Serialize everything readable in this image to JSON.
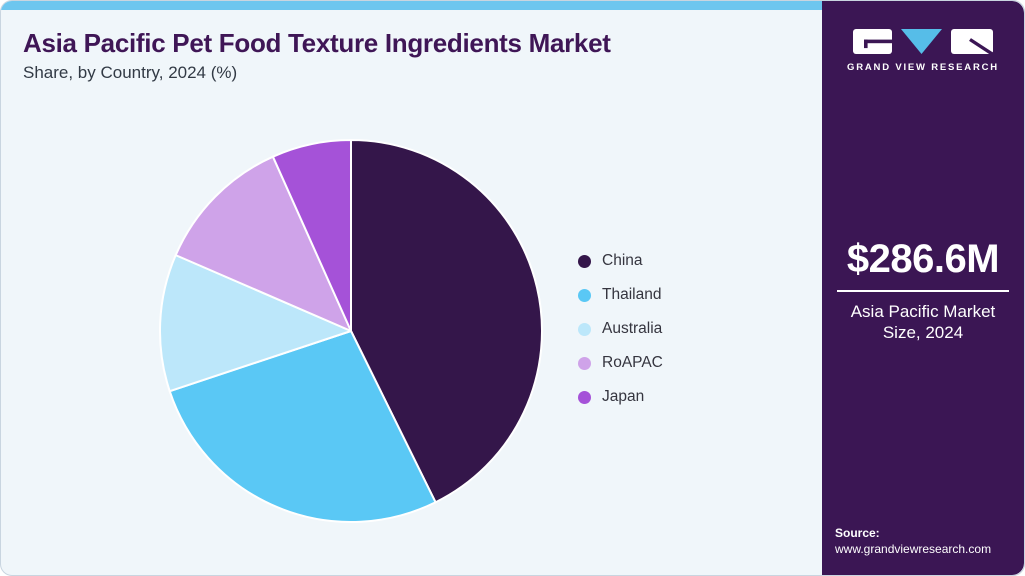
{
  "header": {
    "title": "Asia Pacific Pet Food Texture Ingredients Market",
    "subtitle": "Share, by Country, 2024 (%)"
  },
  "chart_data": {
    "type": "pie",
    "title": "Asia Pacific Pet Food Texture Ingredients Market",
    "subtitle": "Share, by Country, 2024 (%)",
    "unit": "%",
    "categories": [
      "China",
      "Thailand",
      "Australia",
      "RoAPAC",
      "Japan"
    ],
    "values": [
      42.7,
      27.2,
      11.6,
      11.8,
      6.7
    ],
    "colors": [
      "#34164A",
      "#5AC8F5",
      "#BCE7FA",
      "#CFA3E9",
      "#A552D8"
    ],
    "start_angle_deg": 0,
    "direction": "clockwise",
    "legend_position": "right",
    "slice_border_color": "#FFFFFF"
  },
  "sidebar": {
    "brand": "GRAND VIEW RESEARCH",
    "market_size": "$286.6M",
    "market_size_label": "Asia Pacific Market Size, 2024",
    "source_label": "Source:",
    "source_url": "www.grandviewresearch.com"
  },
  "theme": {
    "top_bar_color": "#6DC6EF",
    "card_background": "#F0F6FA",
    "title_color": "#3F1656",
    "subtitle_color": "#323A45",
    "legend_text_color": "#35353F",
    "sidebar_background": "#3B1654",
    "logo_triangle_color": "#56BDE8",
    "logo_block_color": "#FFFFFF"
  }
}
